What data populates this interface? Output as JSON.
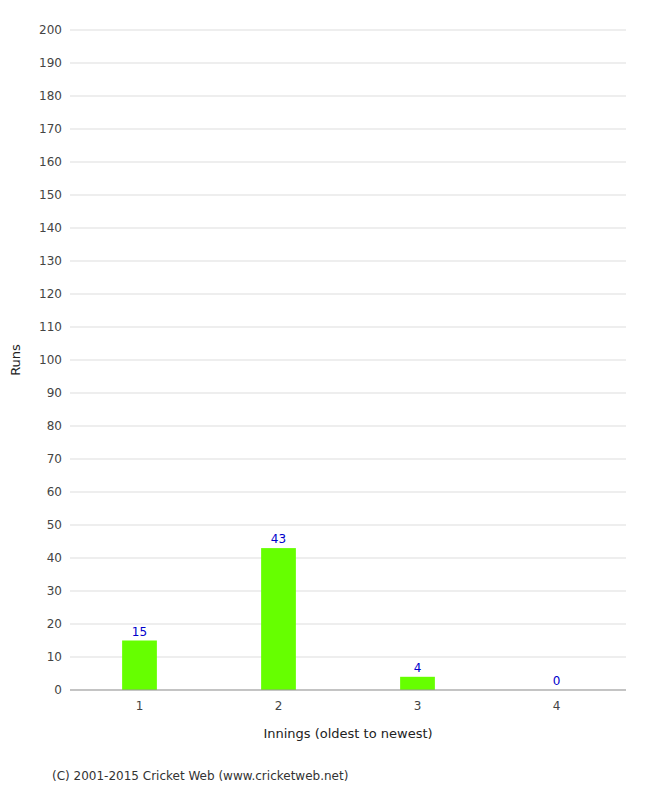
{
  "chart_data": {
    "type": "bar",
    "categories": [
      "1",
      "2",
      "3",
      "4"
    ],
    "values": [
      15,
      43,
      4,
      0
    ],
    "color": "#66ff00",
    "xlabel": "Innings (oldest to newest)",
    "ylabel": "Runs",
    "ylim": [
      0,
      200
    ],
    "yticks": [
      0,
      10,
      20,
      30,
      40,
      50,
      60,
      70,
      80,
      90,
      100,
      110,
      120,
      130,
      140,
      150,
      160,
      170,
      180,
      190,
      200
    ],
    "grid": true,
    "data_labels": true,
    "annotations": [
      "(C) 2001-2015 Cricket Web (www.cricketweb.net)"
    ]
  }
}
